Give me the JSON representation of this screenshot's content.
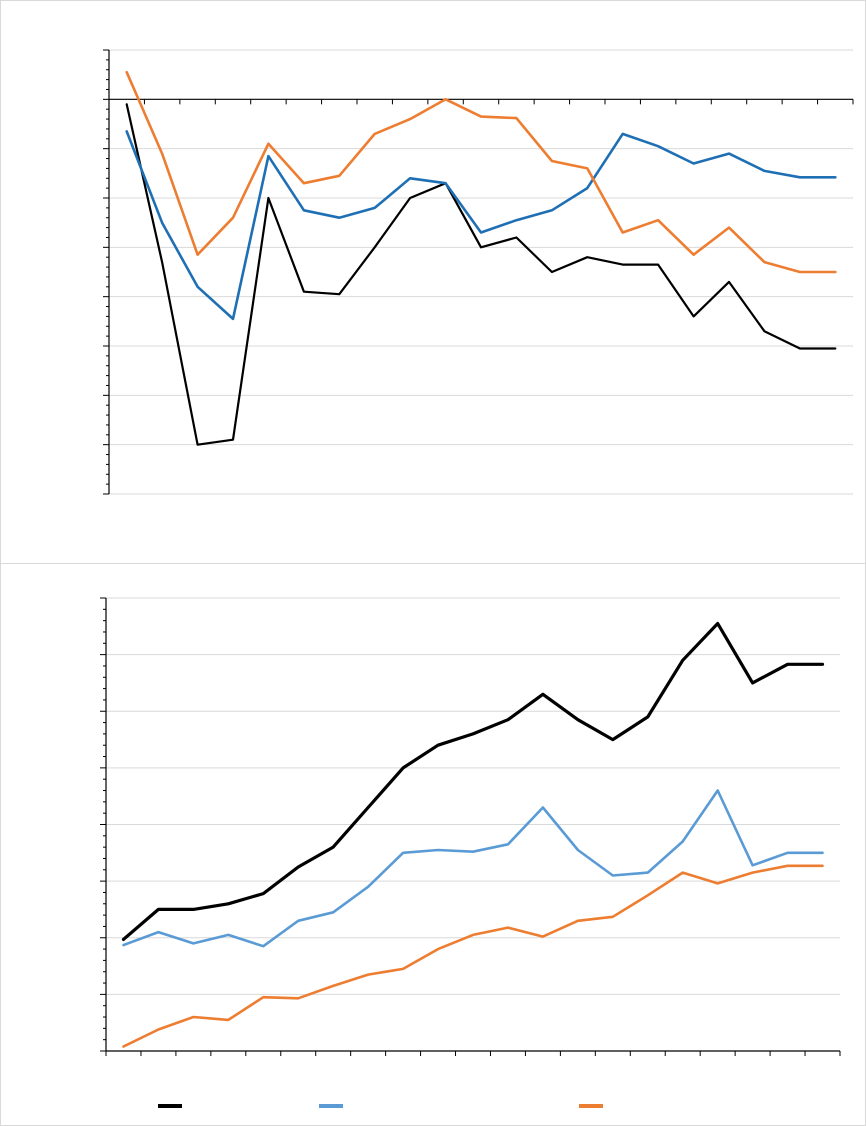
{
  "chart_data": [
    {
      "type": "line",
      "title": "",
      "xlabel": "",
      "ylabel": "",
      "x": [
        1,
        2,
        3,
        4,
        5,
        6,
        7,
        8,
        9,
        10,
        11,
        12,
        13,
        14,
        15,
        16,
        17,
        18,
        19,
        20,
        21
      ],
      "ylim": [
        -8,
        1
      ],
      "grid": true,
      "series": [
        {
          "color": "#000000",
          "values": [
            -0.1,
            -3.3,
            -7.0,
            -6.9,
            -2.0,
            -3.9,
            -3.95,
            -3.0,
            -2.0,
            -1.7,
            -3.0,
            -2.8,
            -3.5,
            -3.2,
            -3.35,
            -3.35,
            -4.4,
            -3.7,
            -4.7,
            -5.05,
            -5.05
          ]
        },
        {
          "color": "#1f6fb4",
          "values": [
            -0.65,
            -2.5,
            -3.8,
            -4.45,
            -1.15,
            -2.25,
            -2.4,
            -2.2,
            -1.6,
            -1.7,
            -2.7,
            -2.45,
            -2.25,
            -1.8,
            -0.7,
            -0.95,
            -1.3,
            -1.1,
            -1.45,
            -1.58,
            -1.58
          ]
        },
        {
          "color": "#ed7d31",
          "values": [
            0.55,
            -1.1,
            -3.15,
            -2.4,
            -0.9,
            -1.7,
            -1.55,
            -0.7,
            -0.4,
            0.0,
            -0.35,
            -0.38,
            -1.25,
            -1.4,
            -2.7,
            -2.45,
            -3.15,
            -2.6,
            -3.3,
            -3.5,
            -3.5
          ]
        }
      ]
    },
    {
      "type": "line",
      "title": "",
      "xlabel": "",
      "ylabel": "",
      "x": [
        1,
        2,
        3,
        4,
        5,
        6,
        7,
        8,
        9,
        10,
        11,
        12,
        13,
        14,
        15,
        16,
        17,
        18,
        19,
        20,
        21
      ],
      "ylim": [
        0,
        8
      ],
      "grid": true,
      "series": [
        {
          "color": "#000000",
          "values": [
            1.97,
            2.5,
            2.5,
            2.6,
            2.78,
            3.25,
            3.6,
            4.3,
            5.0,
            5.4,
            5.6,
            5.85,
            6.3,
            5.85,
            5.5,
            5.9,
            6.9,
            7.55,
            6.5,
            6.83,
            6.83
          ]
        },
        {
          "color": "#5b9bd5",
          "values": [
            1.87,
            2.1,
            1.9,
            2.05,
            1.85,
            2.3,
            2.45,
            2.9,
            3.5,
            3.55,
            3.52,
            3.65,
            4.3,
            3.55,
            3.1,
            3.15,
            3.7,
            4.6,
            3.28,
            3.5,
            3.5
          ]
        },
        {
          "color": "#ed7d31",
          "values": [
            0.08,
            0.38,
            0.6,
            0.55,
            0.95,
            0.93,
            1.15,
            1.35,
            1.45,
            1.8,
            2.05,
            2.18,
            2.02,
            2.3,
            2.37,
            2.75,
            3.15,
            2.96,
            3.15,
            3.27,
            3.27
          ]
        }
      ],
      "legend": {
        "position": "bottom"
      }
    }
  ]
}
